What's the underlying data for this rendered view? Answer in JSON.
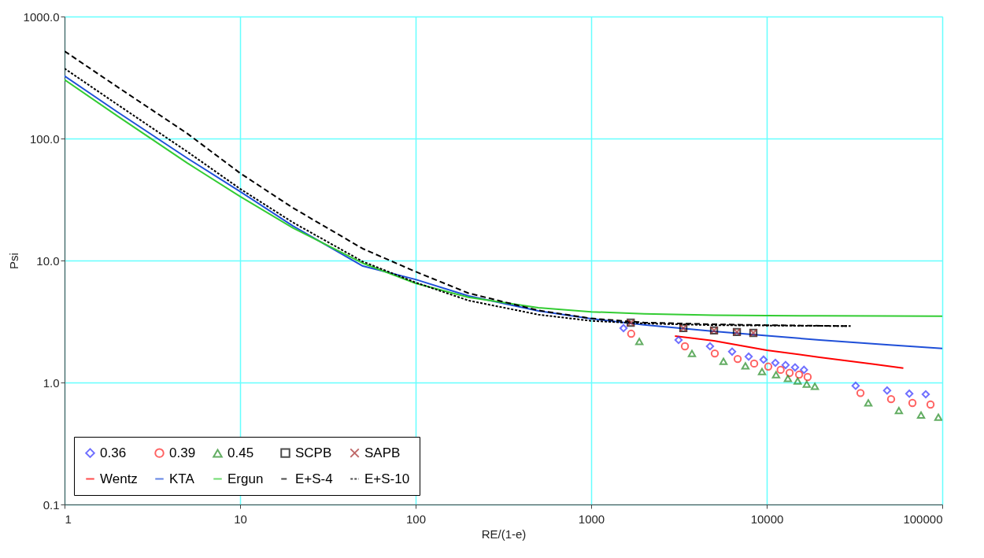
{
  "chart_data": {
    "type": "scatter",
    "xlabel": "RE/(1-e)",
    "ylabel": "Psi",
    "log": "xy",
    "grid": true,
    "legend": "bottom left",
    "xlim": [
      1,
      100000
    ],
    "ylim": [
      0.1,
      1000
    ],
    "xticks": [
      1,
      10,
      100,
      1000,
      10000,
      100000
    ],
    "yticks": [
      {
        "value": 0.1,
        "label": "0.1"
      },
      {
        "value": 1,
        "label": "1.0"
      },
      {
        "value": 10,
        "label": "10.0"
      },
      {
        "value": 100,
        "label": "100.0"
      },
      {
        "value": 1000,
        "label": "1000.0"
      }
    ],
    "series": [
      {
        "name": "0.36",
        "marker": "diamond",
        "color": "#3333ff",
        "x": [
          1528,
          3146,
          4753,
          6350,
          7890,
          9590,
          11200,
          12800,
          14500,
          16300,
          32100,
          48500,
          64900,
          80500
        ],
        "values": [
          2.79,
          2.23,
          1.98,
          1.79,
          1.63,
          1.54,
          1.45,
          1.39,
          1.33,
          1.27,
          0.94,
          0.86,
          0.81,
          0.8
        ]
      },
      {
        "name": "0.39",
        "marker": "circle",
        "color": "#ff2020",
        "x": [
          1690,
          3420,
          5060,
          6830,
          8480,
          10200,
          12000,
          13500,
          15300,
          17100,
          34200,
          51100,
          67600,
          85700
        ],
        "values": [
          2.51,
          1.98,
          1.73,
          1.56,
          1.43,
          1.35,
          1.27,
          1.2,
          1.16,
          1.11,
          0.82,
          0.73,
          0.68,
          0.66
        ]
      },
      {
        "name": "0.45",
        "marker": "triangle",
        "color": "#228b22",
        "x": [
          1880,
          3750,
          5670,
          7560,
          9400,
          11300,
          13200,
          15000,
          16900,
          18800,
          37900,
          56600,
          75700,
          95000
        ],
        "values": [
          2.17,
          1.73,
          1.49,
          1.37,
          1.23,
          1.16,
          1.08,
          1.03,
          0.97,
          0.93,
          0.68,
          0.59,
          0.54,
          0.52
        ]
      },
      {
        "name": "SCPB",
        "marker": "square",
        "color": "#000000",
        "x": [
          1680,
          3350,
          5010,
          6760,
          8390
        ],
        "values": [
          3.09,
          2.79,
          2.67,
          2.59,
          2.55
        ]
      },
      {
        "name": "SAPB",
        "marker": "cross",
        "color": "#a52a2a",
        "x": [
          1680,
          3350,
          5010,
          6760,
          8390
        ],
        "values": [
          3.09,
          2.79,
          2.67,
          2.59,
          2.55
        ]
      },
      {
        "name": "Wentz",
        "type": "line",
        "line_style": "solid",
        "color": "#ff0000",
        "x": [
          3000,
          5000,
          10000,
          20000,
          40000,
          60000
        ],
        "values": [
          2.4,
          2.2,
          1.84,
          1.61,
          1.42,
          1.31
        ]
      },
      {
        "name": "KTA",
        "type": "line",
        "line_style": "solid",
        "color": "#1f4fd8",
        "x": [
          1,
          2,
          5,
          10,
          20,
          50,
          100,
          200,
          500,
          1000,
          2000,
          5000,
          10000,
          20000,
          50000,
          100000
        ],
        "values": [
          326,
          165,
          69,
          36.8,
          19.2,
          9.0,
          6.99,
          5.13,
          3.86,
          3.33,
          2.97,
          2.63,
          2.42,
          2.23,
          2.03,
          1.9
        ]
      },
      {
        "name": "Ergun",
        "type": "line",
        "line_style": "solid",
        "color": "#33cc33",
        "x": [
          1,
          2,
          5,
          10,
          20,
          50,
          100,
          200,
          500,
          1000,
          2000,
          5000,
          10000,
          20000,
          50000,
          100000
        ],
        "values": [
          303,
          153,
          63,
          33.5,
          18.5,
          9.5,
          6.5,
          5.0,
          4.1,
          3.8,
          3.65,
          3.56,
          3.53,
          3.52,
          3.51,
          3.5
        ]
      },
      {
        "name": "E+S-4",
        "type": "line",
        "line_style": "dashed",
        "color": "#000000",
        "x": [
          1,
          2,
          5,
          10,
          20,
          50,
          100,
          200,
          500,
          1000,
          2000,
          5000,
          10000,
          30000
        ],
        "values": [
          520,
          265,
          110,
          52,
          27,
          12.5,
          8.1,
          5.4,
          3.9,
          3.35,
          3.1,
          3.0,
          2.95,
          2.9
        ]
      },
      {
        "name": "E+S-10",
        "type": "line",
        "line_style": "dotted",
        "color": "#000000",
        "x": [
          1,
          2,
          5,
          10,
          20,
          50,
          100,
          200,
          500,
          1000,
          2000,
          5000,
          10000,
          30000
        ],
        "values": [
          375,
          190,
          78,
          38.7,
          20.5,
          9.8,
          6.6,
          4.7,
          3.6,
          3.2,
          3.05,
          2.95,
          2.93,
          2.9
        ]
      }
    ]
  }
}
